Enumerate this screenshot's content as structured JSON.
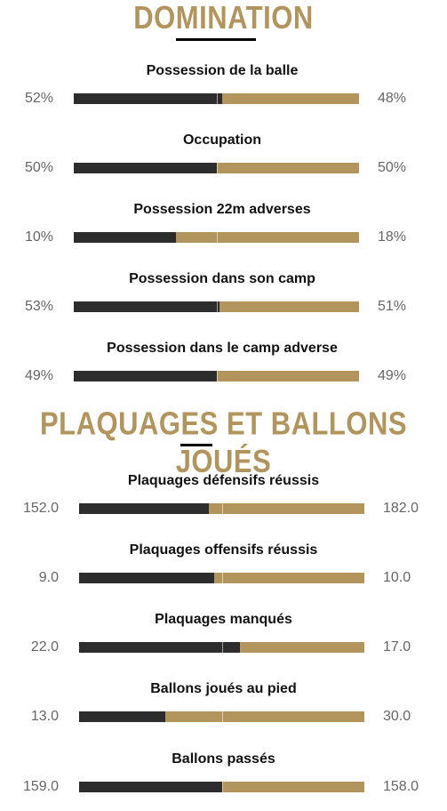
{
  "sections": [
    {
      "title": "DOMINATION"
    },
    {
      "title_part1": "PLAQUAGES ",
      "title_part2": "ET",
      "title_part3": " BALLONS JOUÉS"
    }
  ],
  "colors": {
    "home": "#2d2d2d",
    "away": "#b1955c",
    "title": "#b1955c"
  },
  "chart_data": [
    {
      "type": "bar",
      "title": "DOMINATION",
      "stacked": true,
      "categories": [
        "Possession de la balle",
        "Occupation",
        "Possession 22m adverses",
        "Possession dans son camp",
        "Possession dans le camp adverse"
      ],
      "series": [
        {
          "values": [
            52,
            50,
            10,
            53,
            49
          ],
          "labels": [
            "52%",
            "50%",
            "10%",
            "53%",
            "49%"
          ]
        },
        {
          "values": [
            48,
            50,
            18,
            51,
            49
          ],
          "labels": [
            "48%",
            "50%",
            "18%",
            "51%",
            "49%"
          ]
        }
      ]
    },
    {
      "type": "bar",
      "title": "PLAQUAGES ET BALLONS JOUÉS",
      "stacked": true,
      "categories": [
        "Plaquages défensifs réussis",
        "Plaquages offensifs réussis",
        "Plaquages manqués",
        "Ballons joués au pied",
        "Ballons passés"
      ],
      "series": [
        {
          "values": [
            152.0,
            9.0,
            22.0,
            13.0,
            159.0
          ],
          "labels": [
            "152.0",
            "9.0",
            "22.0",
            "13.0",
            "159.0"
          ]
        },
        {
          "values": [
            182.0,
            10.0,
            17.0,
            30.0,
            158.0
          ],
          "labels": [
            "182.0",
            "10.0",
            "17.0",
            "30.0",
            "158.0"
          ]
        }
      ]
    }
  ]
}
